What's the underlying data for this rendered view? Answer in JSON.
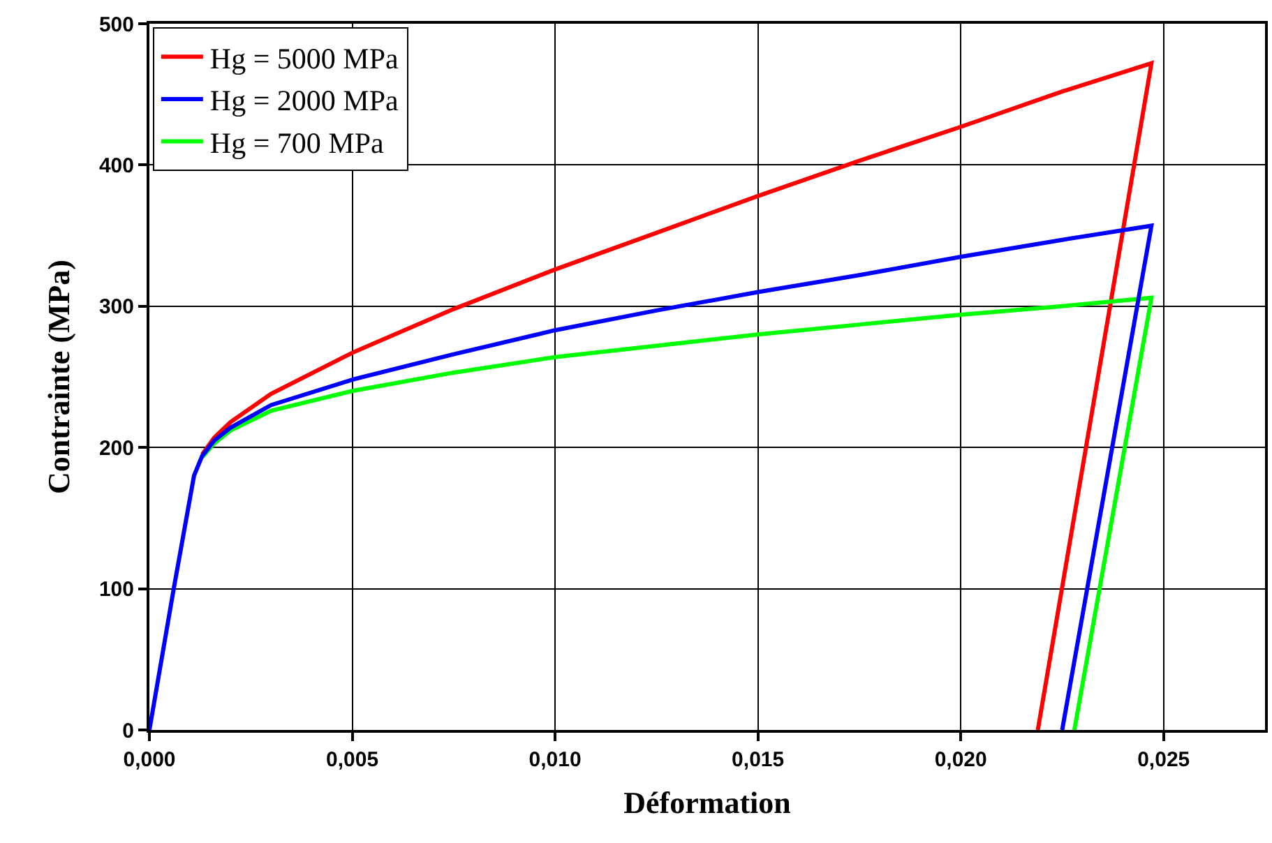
{
  "chart_data": {
    "type": "line",
    "xlabel": "Déformation",
    "ylabel": "Contrainte (MPa)",
    "xlim": [
      0,
      0.0275
    ],
    "ylim": [
      0,
      500
    ],
    "xticks": [
      {
        "value": 0,
        "label": "0,000"
      },
      {
        "value": 0.005,
        "label": "0,005"
      },
      {
        "value": 0.01,
        "label": "0,010"
      },
      {
        "value": 0.015,
        "label": "0,015"
      },
      {
        "value": 0.02,
        "label": "0,020"
      },
      {
        "value": 0.025,
        "label": "0,025"
      }
    ],
    "yticks": [
      0,
      100,
      200,
      300,
      400,
      500
    ],
    "grid": true,
    "legend": "top left",
    "marker": "none",
    "line_style": "solid",
    "series": [
      {
        "name": "Hg = 5000 MPa",
        "color": "#ff0000",
        "x": [
          0.0013,
          0.0016,
          0.002,
          0.003,
          0.005,
          0.0075,
          0.01,
          0.0125,
          0.015,
          0.0175,
          0.02,
          0.0225,
          0.0247,
          0.0219
        ],
        "values": [
          195,
          207,
          218,
          238,
          267,
          298,
          326,
          352,
          378,
          403,
          427,
          452,
          472,
          0
        ]
      },
      {
        "name": "Hg = 2000 MPa",
        "color": "#0000ff",
        "x": [
          0,
          0.0006,
          0.0011,
          0.0013,
          0.0016,
          0.002,
          0.003,
          0.005,
          0.0075,
          0.01,
          0.0125,
          0.015,
          0.0175,
          0.02,
          0.0225,
          0.0247,
          0.0225
        ],
        "values": [
          0,
          100,
          180,
          194,
          205,
          214,
          230,
          248,
          266,
          283,
          297,
          310,
          322,
          335,
          347,
          357,
          0
        ]
      },
      {
        "name": "Hg = 700 MPa",
        "color": "#00ff00",
        "x": [
          0.0013,
          0.0016,
          0.002,
          0.003,
          0.005,
          0.0075,
          0.01,
          0.0125,
          0.015,
          0.0175,
          0.02,
          0.0225,
          0.0247,
          0.0228
        ],
        "values": [
          193,
          203,
          212,
          226,
          240,
          253,
          264,
          272,
          280,
          287,
          294,
          300,
          306,
          0
        ]
      }
    ]
  }
}
